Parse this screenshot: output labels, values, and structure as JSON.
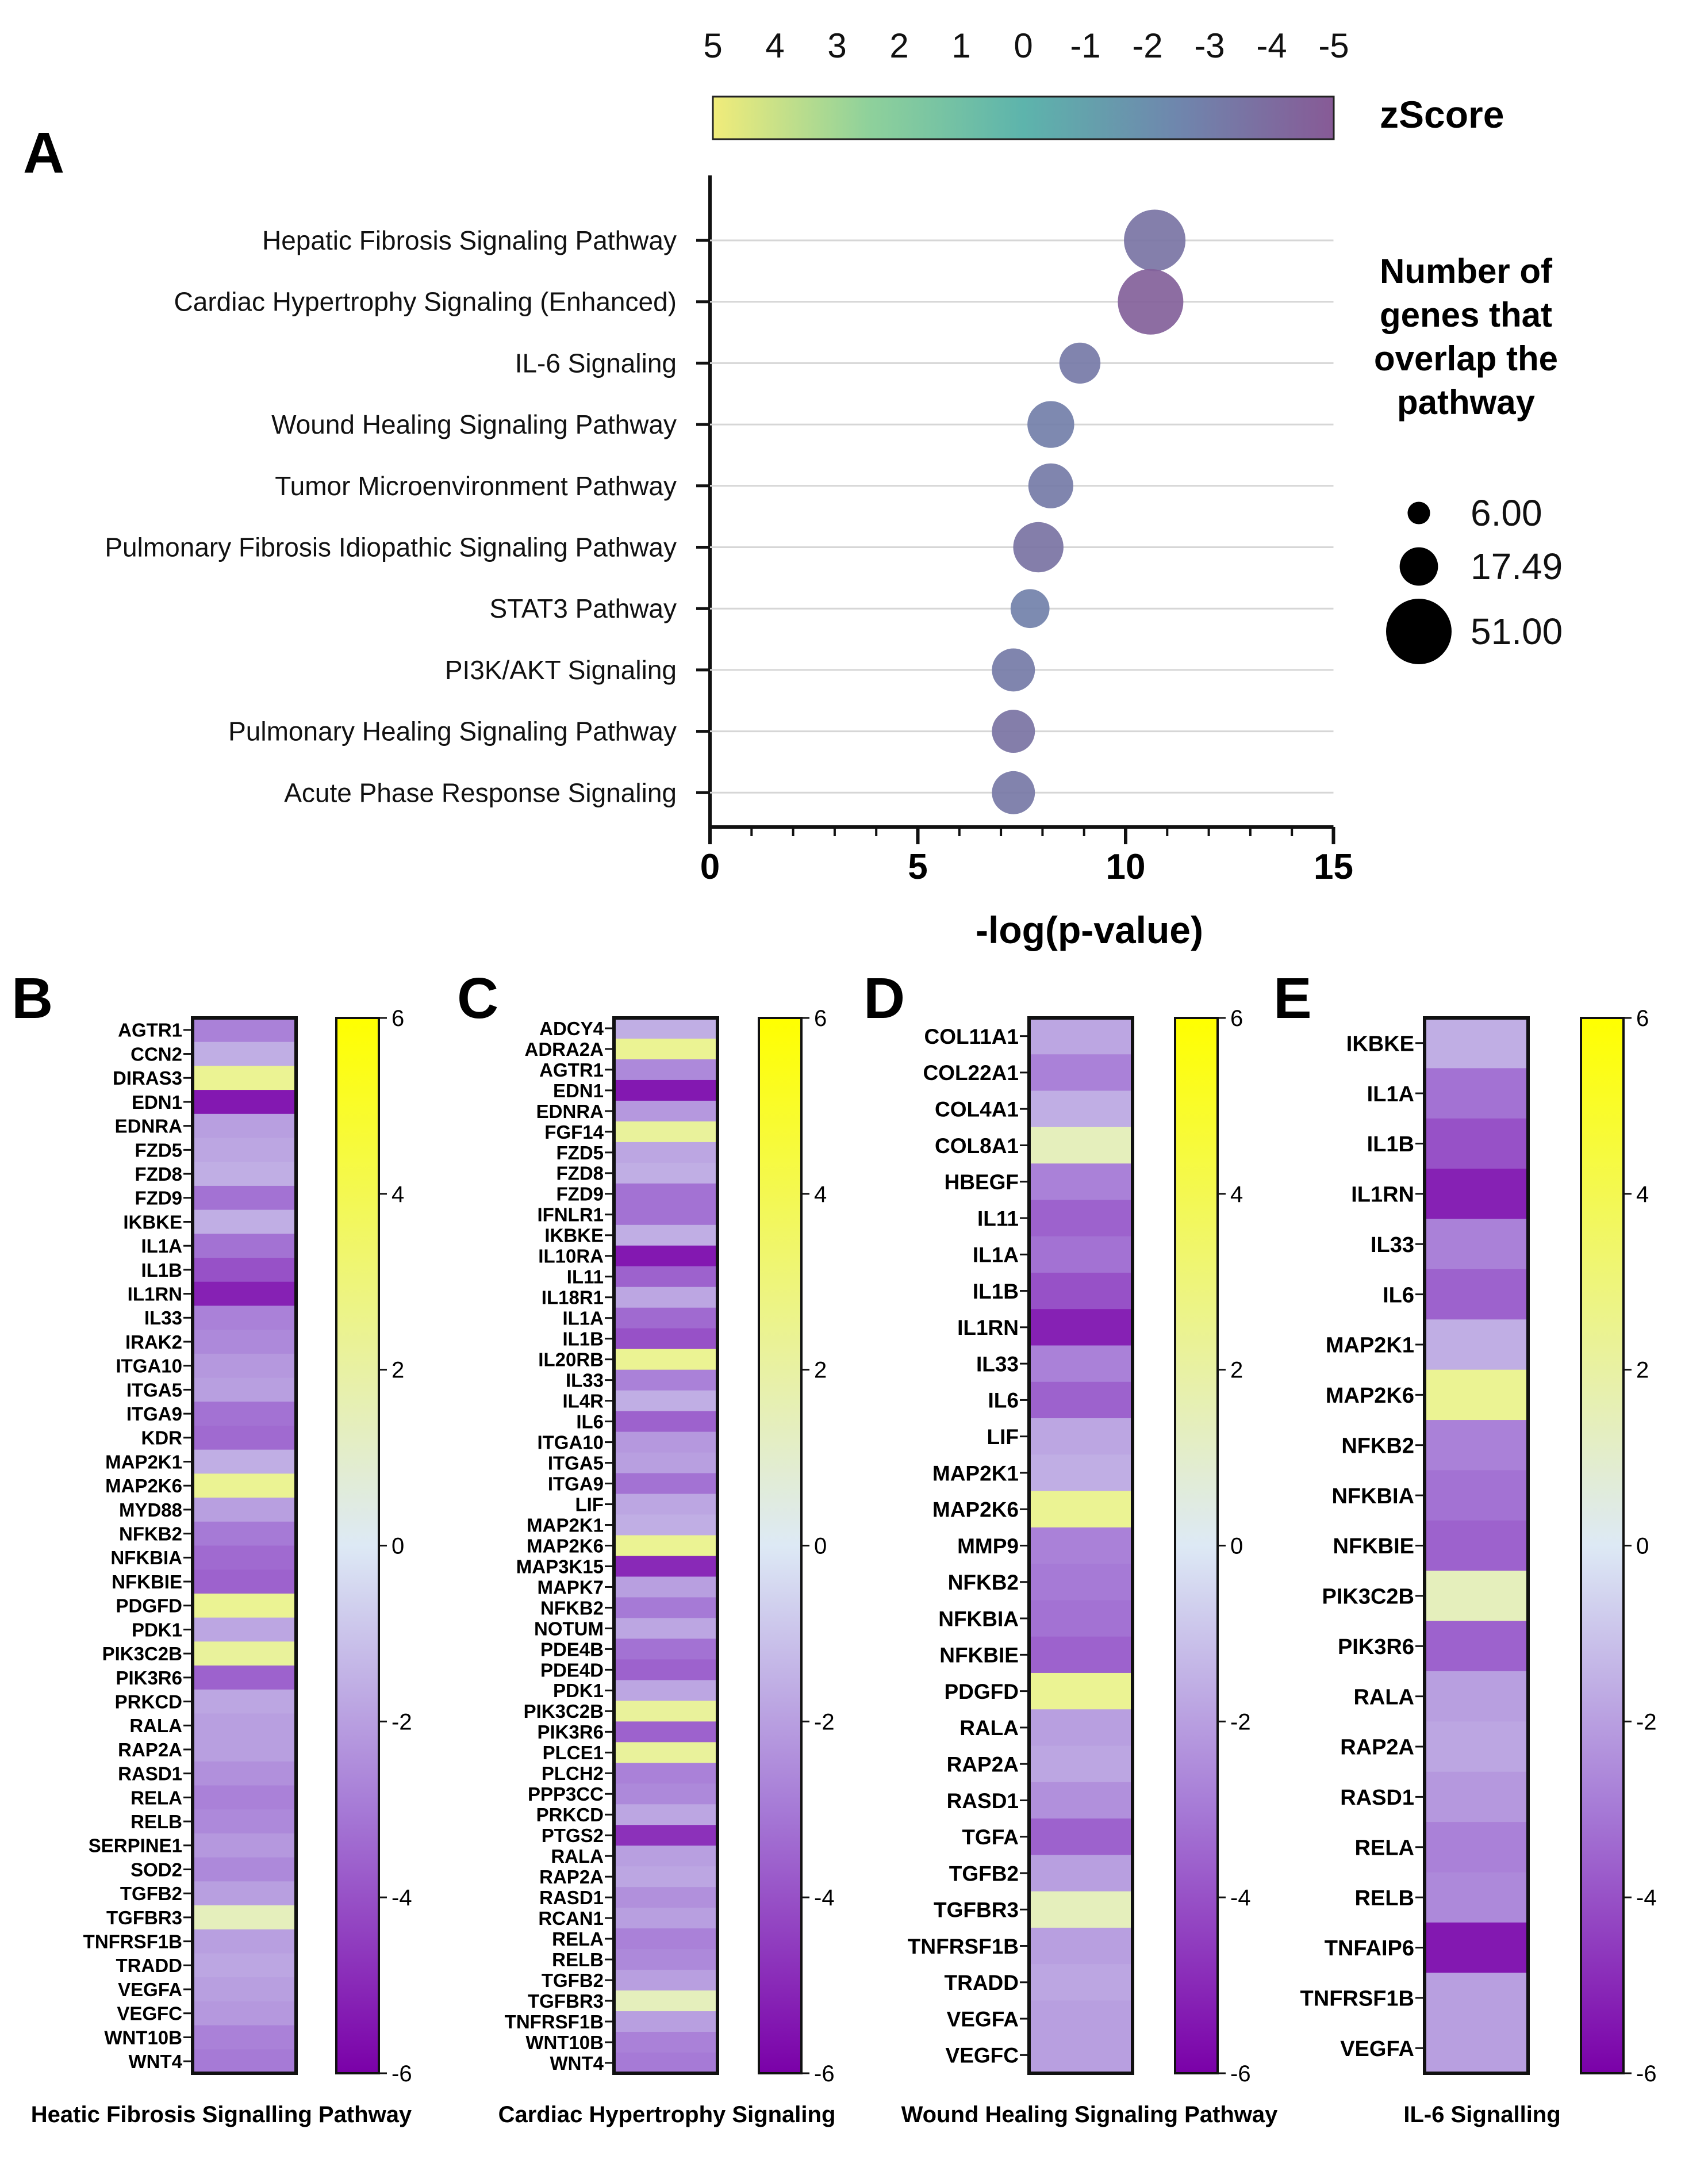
{
  "chart_data": [
    {
      "panel": "A",
      "type": "scatter",
      "xlabel": "-log(p-value)",
      "xlim": [
        0,
        15
      ],
      "xticks": [
        "0",
        "5",
        "10",
        "15"
      ],
      "categories": [
        "Hepatic Fibrosis Signaling Pathway",
        "Cardiac Hypertrophy Signaling (Enhanced)",
        "IL-6 Signaling",
        "Wound Healing Signaling Pathway",
        "Tumor Microenvironment Pathway",
        "Pulmonary Fibrosis Idiopathic Signaling Pathway",
        "STAT3 Pathway",
        "PI3K/AKT Signaling",
        "Pulmonary Healing Signaling Pathway",
        "Acute Phase Response Signaling"
      ],
      "x": [
        10.7,
        10.6,
        8.9,
        8.2,
        8.2,
        7.9,
        7.7,
        7.3,
        7.3,
        7.3
      ],
      "zscore": [
        -3.5,
        -4.6,
        -3.2,
        -2.9,
        -3.1,
        -3.6,
        -2.8,
        -3.1,
        -3.6,
        -3.3
      ],
      "sizes": [
        45,
        51,
        20,
        26,
        24,
        30,
        18,
        22,
        22,
        22
      ],
      "colorbar": {
        "title": "zScore",
        "ticks": [
          "5",
          "4",
          "3",
          "2",
          "1",
          "0",
          "-1",
          "-2",
          "-3",
          "-4",
          "-5"
        ],
        "range": [
          5,
          -5
        ]
      },
      "size_legend": {
        "title_lines": [
          "Number of",
          "genes that",
          "overlap the",
          "pathway"
        ],
        "labels": [
          "6.00",
          "17.49",
          "51.00"
        ],
        "values": [
          6,
          17.49,
          51
        ]
      }
    },
    {
      "panel": "B",
      "type": "heatmap",
      "title": "Heatic Fibrosis Signalling Pathway",
      "genes": [
        "AGTR1",
        "CCN2",
        "DIRAS3",
        "EDN1",
        "EDNRA",
        "FZD5",
        "FZD8",
        "FZD9",
        "IKBKE",
        "IL1A",
        "IL1B",
        "IL1RN",
        "IL33",
        "IRAK2",
        "ITGA10",
        "ITGA5",
        "ITGA9",
        "KDR",
        "MAP2K1",
        "MAP2K6",
        "MYD88",
        "NFKB2",
        "NFKBIA",
        "NFKBIE",
        "PDGFD",
        "PDK1",
        "PIK3C2B",
        "PIK3R6",
        "PRKCD",
        "RALA",
        "RAP2A",
        "RASD1",
        "RELA",
        "RELB",
        "SERPINE1",
        "SOD2",
        "TGFB2",
        "TGFBR3",
        "TNFRSF1B",
        "TRADD",
        "VEGFA",
        "VEGFC",
        "WNT10B",
        "WNT4"
      ],
      "values": [
        -2.8,
        -1.6,
        2.4,
        -5.4,
        -2.0,
        -1.8,
        -1.6,
        -3.2,
        -1.6,
        -3.2,
        -4.0,
        -5.2,
        -2.8,
        -2.6,
        -2.2,
        -2.0,
        -3.2,
        -3.4,
        -1.6,
        2.4,
        -2.0,
        -3.0,
        -3.4,
        -3.6,
        2.4,
        -1.8,
        2.2,
        -3.6,
        -1.8,
        -2.0,
        -2.0,
        -2.4,
        -2.8,
        -2.6,
        -2.2,
        -2.6,
        -2.0,
        1.4,
        -2.0,
        -1.8,
        -2.0,
        -2.2,
        -2.8,
        -3.0
      ],
      "colorbar": {
        "ticks": [
          "6",
          "4",
          "2",
          "0",
          "-2",
          "-4",
          "-6"
        ],
        "range": [
          6,
          -6
        ]
      }
    },
    {
      "panel": "C",
      "type": "heatmap",
      "title": "Cardiac Hypertrophy Signaling",
      "genes": [
        "ADCY4",
        "ADRA2A",
        "AGTR1",
        "EDN1",
        "EDNRA",
        "FGF14",
        "FZD5",
        "FZD8",
        "FZD9",
        "IFNLR1",
        "IKBKE",
        "IL10RA",
        "IL11",
        "IL18R1",
        "IL1A",
        "IL1B",
        "IL20RB",
        "IL33",
        "IL4R",
        "IL6",
        "ITGA10",
        "ITGA5",
        "ITGA9",
        "LIF",
        "MAP2K1",
        "MAP2K6",
        "MAP3K15",
        "MAPK7",
        "NFKB2",
        "NOTUM",
        "PDE4B",
        "PDE4D",
        "PDK1",
        "PIK3C2B",
        "PIK3R6",
        "PLCE1",
        "PLCH2",
        "PPP3CC",
        "PRKCD",
        "PTGS2",
        "RALA",
        "RAP2A",
        "RASD1",
        "RCAN1",
        "RELA",
        "RELB",
        "TGFB2",
        "TGFBR3",
        "TNFRSF1B",
        "WNT10B",
        "WNT4"
      ],
      "values": [
        -1.6,
        2.4,
        -2.6,
        -5.4,
        -2.2,
        2.2,
        -1.8,
        -1.6,
        -3.2,
        -3.2,
        -1.6,
        -5.4,
        -3.6,
        -1.8,
        -3.4,
        -4.0,
        2.4,
        -2.8,
        -1.6,
        -3.6,
        -2.2,
        -2.0,
        -3.2,
        -1.8,
        -1.6,
        2.4,
        -5.0,
        -2.0,
        -3.0,
        -1.8,
        -3.2,
        -3.6,
        -1.8,
        2.2,
        -3.6,
        2.2,
        -2.8,
        -2.6,
        -1.8,
        -4.8,
        -2.0,
        -1.8,
        -2.4,
        -2.0,
        -2.8,
        -2.6,
        -2.0,
        1.4,
        -2.0,
        -2.8,
        -3.0
      ],
      "colorbar": {
        "ticks": [
          "6",
          "4",
          "2",
          "0",
          "-2",
          "-4",
          "-6"
        ],
        "range": [
          6,
          -6
        ]
      }
    },
    {
      "panel": "D",
      "type": "heatmap",
      "title": "Wound Healing Signaling Pathway",
      "genes": [
        "COL11A1",
        "COL22A1",
        "COL4A1",
        "COL8A1",
        "HBEGF",
        "IL11",
        "IL1A",
        "IL1B",
        "IL1RN",
        "IL33",
        "IL6",
        "LIF",
        "MAP2K1",
        "MAP2K6",
        "MMP9",
        "NFKB2",
        "NFKBIA",
        "NFKBIE",
        "PDGFD",
        "RALA",
        "RAP2A",
        "RASD1",
        "TGFA",
        "TGFB2",
        "TGFBR3",
        "TNFRSF1B",
        "TRADD",
        "VEGFA",
        "VEGFC"
      ],
      "values": [
        -1.8,
        -2.8,
        -1.6,
        1.4,
        -2.8,
        -3.6,
        -3.2,
        -4.0,
        -5.2,
        -2.8,
        -3.6,
        -1.8,
        -1.6,
        2.4,
        -2.8,
        -3.0,
        -3.2,
        -3.6,
        2.4,
        -2.0,
        -1.8,
        -2.4,
        -3.6,
        -2.0,
        1.4,
        -2.0,
        -1.8,
        -2.0,
        -2.0
      ],
      "colorbar": {
        "ticks": [
          "6",
          "4",
          "2",
          "0",
          "-2",
          "-4",
          "-6"
        ],
        "range": [
          6,
          -6
        ]
      }
    },
    {
      "panel": "E",
      "type": "heatmap",
      "title": "IL-6 Signalling",
      "genes": [
        "IKBKE",
        "IL1A",
        "IL1B",
        "IL1RN",
        "IL33",
        "IL6",
        "MAP2K1",
        "MAP2K6",
        "NFKB2",
        "NFKBIA",
        "NFKBIE",
        "PIK3C2B",
        "PIK3R6",
        "RALA",
        "RAP2A",
        "RASD1",
        "RELA",
        "RELB",
        "TNFAIP6",
        "TNFRSF1B",
        "VEGFA"
      ],
      "values": [
        -1.6,
        -3.2,
        -4.0,
        -5.2,
        -2.8,
        -3.6,
        -1.6,
        2.4,
        -2.8,
        -3.2,
        -3.6,
        1.4,
        -3.6,
        -2.0,
        -1.8,
        -2.2,
        -2.8,
        -2.6,
        -5.4,
        -2.0,
        -2.0
      ],
      "colorbar": {
        "ticks": [
          "6",
          "4",
          "2",
          "0",
          "-2",
          "-4",
          "-6"
        ],
        "range": [
          6,
          -6
        ]
      }
    }
  ]
}
